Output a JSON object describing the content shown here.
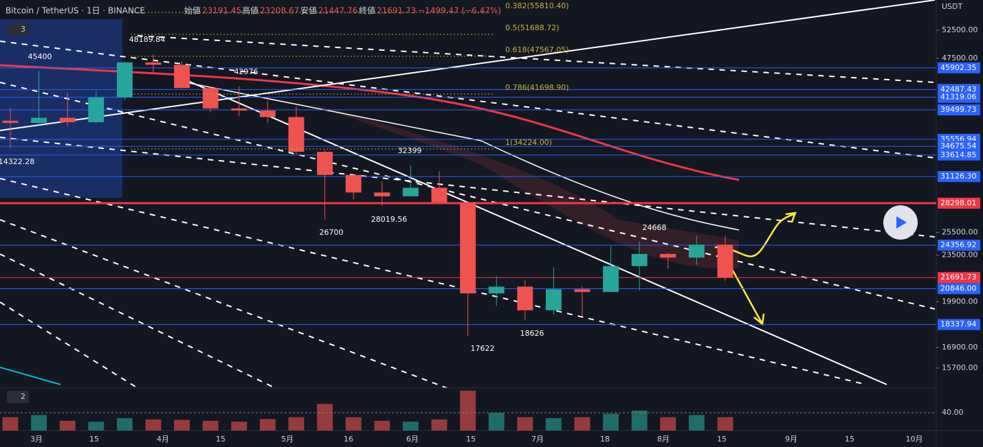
{
  "header": {
    "symbol": "Bitcoin / TetherUS · 1日 · BINANCE",
    "open_label": "始値",
    "open": 23191.45,
    "high_label": "高値",
    "high": 23208.67,
    "low_label": "安値",
    "low": 21447.76,
    "close_label": "終値",
    "close": 21691.73,
    "change": "−1499.47 (−6.47%)"
  },
  "chart_data": {
    "type": "candlestick",
    "currency": "USDT",
    "log_scale": true,
    "ylim": [
      14620,
      58500
    ],
    "yticks": [
      {
        "value": 52500,
        "label": "52500.00"
      },
      {
        "value": 47500,
        "label": "47500.00"
      },
      {
        "value": 25500,
        "label": "25500.00"
      },
      {
        "value": 23500,
        "label": "23500.00"
      },
      {
        "value": 19900,
        "label": "19900.00"
      },
      {
        "value": 16900,
        "label": "16900.00"
      },
      {
        "value": 15700,
        "label": "15700.00"
      }
    ],
    "levels": [
      45902.35,
      42487.43,
      41319.06,
      39499.73,
      35556.94,
      34675.54,
      33614.85,
      {
        "value": 31126.3,
        "label": "31126.30"
      },
      28298.01,
      24356.92,
      21691.73,
      {
        "value": 20846,
        "label": "20846.00"
      },
      18337.94
    ],
    "level_colors": [
      "#2962ff",
      "#2962ff",
      "#2962ff",
      "#2962ff",
      "#2962ff",
      "#2962ff",
      "#2962ff",
      "#2962ff",
      "#f23645",
      "#2962ff",
      "#f23645",
      "#2962ff",
      "#2962ff"
    ],
    "x_labels": [
      "3月",
      "15",
      "4月",
      "15",
      "5月",
      "16",
      "6月",
      "15",
      "7月",
      "18",
      "8月",
      "15",
      "9月",
      "15",
      "10月"
    ],
    "open": [
      38000,
      37700,
      38400,
      37800,
      41300,
      46800,
      46400,
      42700,
      39700,
      39400,
      38500,
      34000,
      31300,
      29400,
      29000,
      29900,
      28400,
      20500,
      21000,
      19300,
      20800,
      20600,
      22600,
      23600,
      23300,
      24400
    ],
    "high": [
      39800,
      45400,
      42000,
      42300,
      47000,
      48190,
      47000,
      42900,
      42976,
      40800,
      40000,
      34300,
      31300,
      30600,
      32399,
      31700,
      28400,
      21800,
      21500,
      22500,
      21000,
      24300,
      24668,
      23700,
      25200,
      25200
    ],
    "low": [
      34400,
      37400,
      37200,
      37600,
      40900,
      45200,
      42700,
      39200,
      38600,
      37700,
      33700,
      26700,
      28700,
      28020,
      29200,
      28200,
      17622,
      19600,
      18626,
      19000,
      18900,
      20700,
      20700,
      22400,
      22700,
      21447.76
    ],
    "close": [
      37700,
      38400,
      37800,
      41300,
      46800,
      46400,
      42700,
      39700,
      39400,
      38500,
      34000,
      31300,
      29400,
      29000,
      29900,
      28400,
      20500,
      21000,
      19300,
      20800,
      20600,
      22600,
      23600,
      23300,
      24400,
      21691.73
    ],
    "up_color": "#26a69a",
    "down_color": "#ef5350",
    "volume": [
      30,
      35,
      22,
      20,
      28,
      25,
      24,
      22,
      20,
      26,
      30,
      60,
      30,
      22,
      20,
      25,
      90,
      40,
      30,
      28,
      30,
      38,
      45,
      30,
      35,
      30
    ],
    "volume_lim": [
      0,
      96
    ],
    "volume_ticks": [
      {
        "value": 40,
        "label": "40.00"
      }
    ],
    "annotations": [
      "48189.84",
      "45400",
      "42976",
      "32399",
      "26700",
      "28019.56",
      "24668",
      "17622",
      "18626",
      "14322.28"
    ],
    "fib_labels": [
      "0.382(55810.40)",
      "0.5(51688.72)",
      "0.618(47567.05)",
      "0.786(41698.90)",
      "1(34224.00)"
    ],
    "pane_labels": [
      "3",
      "2"
    ]
  }
}
